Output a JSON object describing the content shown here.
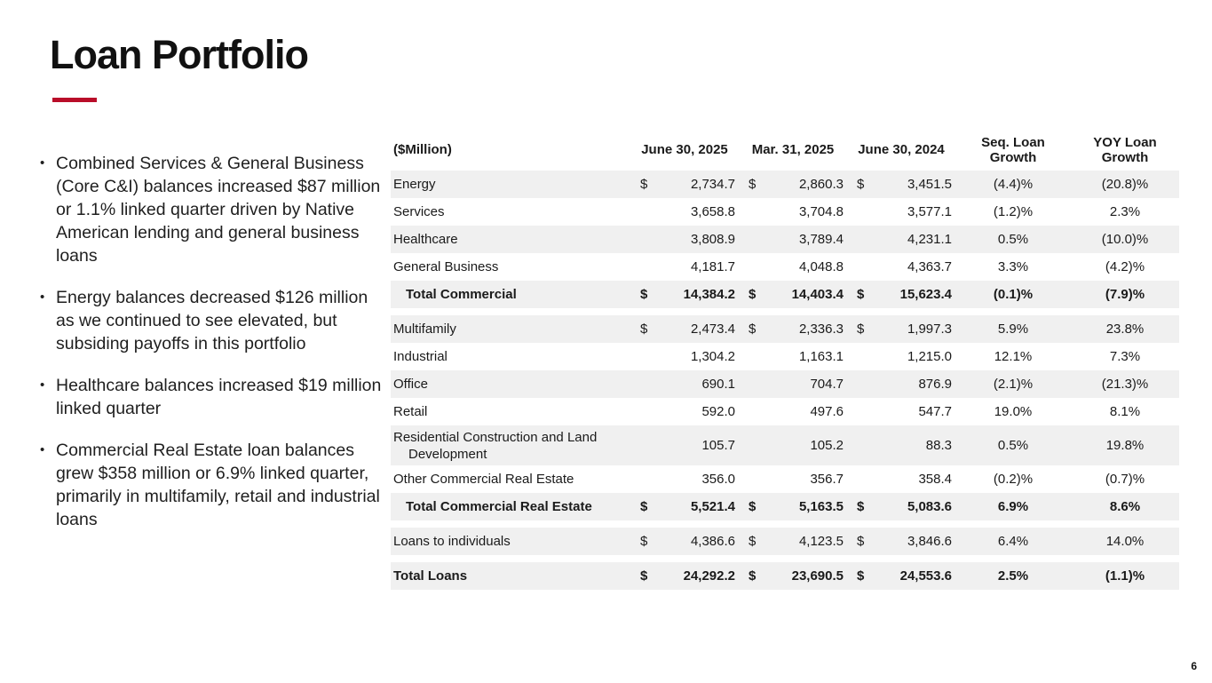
{
  "slide": {
    "title": "Loan Portfolio",
    "page_number": "6"
  },
  "colors": {
    "accent_red": "#B90D29",
    "row_stripe": "#F0F0F0",
    "text": "#1A1A1A"
  },
  "bullets": [
    "Combined Services & General Business (Core C&I) balances increased $87 million or 1.1% linked quarter driven by Native American lending and general business loans",
    "Energy balances decreased $126 million as we continued to see elevated, but subsiding payoffs in this portfolio",
    "Healthcare balances increased $19 million linked quarter",
    "Commercial Real Estate loan balances grew $358 million or 6.9% linked quarter, primarily in multifamily, retail and industrial loans"
  ],
  "table": {
    "unit_label": "($Million)",
    "columns": [
      "June 30, 2025",
      "Mar. 31, 2025",
      "June 30, 2024",
      "Seq. Loan Growth",
      "YOY Loan Growth"
    ],
    "rows": [
      {
        "label": "Energy",
        "dollar": true,
        "bold": false,
        "indent": false,
        "two_line": false,
        "shaded": true,
        "gap_after": false,
        "values": [
          "2,734.7",
          "2,860.3",
          "3,451.5",
          "(4.4)%",
          "(20.8)%"
        ]
      },
      {
        "label": "Services",
        "dollar": false,
        "bold": false,
        "indent": false,
        "two_line": false,
        "shaded": false,
        "gap_after": false,
        "values": [
          "3,658.8",
          "3,704.8",
          "3,577.1",
          "(1.2)%",
          "2.3%"
        ]
      },
      {
        "label": "Healthcare",
        "dollar": false,
        "bold": false,
        "indent": false,
        "two_line": false,
        "shaded": true,
        "gap_after": false,
        "values": [
          "3,808.9",
          "3,789.4",
          "4,231.1",
          "0.5%",
          "(10.0)%"
        ]
      },
      {
        "label": "General Business",
        "dollar": false,
        "bold": false,
        "indent": false,
        "two_line": false,
        "shaded": false,
        "gap_after": false,
        "values": [
          "4,181.7",
          "4,048.8",
          "4,363.7",
          "3.3%",
          "(4.2)%"
        ]
      },
      {
        "label": "Total Commercial",
        "dollar": true,
        "bold": true,
        "indent": true,
        "two_line": false,
        "shaded": true,
        "gap_after": true,
        "values": [
          "14,384.2",
          "14,403.4",
          "15,623.4",
          "(0.1)%",
          "(7.9)%"
        ]
      },
      {
        "label": "Multifamily",
        "dollar": true,
        "bold": false,
        "indent": false,
        "two_line": false,
        "shaded": true,
        "gap_after": false,
        "values": [
          "2,473.4",
          "2,336.3",
          "1,997.3",
          "5.9%",
          "23.8%"
        ]
      },
      {
        "label": "Industrial",
        "dollar": false,
        "bold": false,
        "indent": false,
        "two_line": false,
        "shaded": false,
        "gap_after": false,
        "values": [
          "1,304.2",
          "1,163.1",
          "1,215.0",
          "12.1%",
          "7.3%"
        ]
      },
      {
        "label": "Office",
        "dollar": false,
        "bold": false,
        "indent": false,
        "two_line": false,
        "shaded": true,
        "gap_after": false,
        "values": [
          "690.1",
          "704.7",
          "876.9",
          "(2.1)%",
          "(21.3)%"
        ]
      },
      {
        "label": "Retail",
        "dollar": false,
        "bold": false,
        "indent": false,
        "two_line": false,
        "shaded": false,
        "gap_after": false,
        "values": [
          "592.0",
          "497.6",
          "547.7",
          "19.0%",
          "8.1%"
        ]
      },
      {
        "label": "Residential Construction and Land Development",
        "dollar": false,
        "bold": false,
        "indent": false,
        "two_line": true,
        "shaded": true,
        "gap_after": false,
        "values": [
          "105.7",
          "105.2",
          "88.3",
          "0.5%",
          "19.8%"
        ]
      },
      {
        "label": "Other Commercial Real Estate",
        "dollar": false,
        "bold": false,
        "indent": false,
        "two_line": false,
        "shaded": false,
        "gap_after": false,
        "values": [
          "356.0",
          "356.7",
          "358.4",
          "(0.2)%",
          "(0.7)%"
        ]
      },
      {
        "label": "Total Commercial Real Estate",
        "dollar": true,
        "bold": true,
        "indent": true,
        "two_line": false,
        "shaded": true,
        "gap_after": true,
        "values": [
          "5,521.4",
          "5,163.5",
          "5,083.6",
          "6.9%",
          "8.6%"
        ]
      },
      {
        "label": "Loans to individuals",
        "dollar": true,
        "bold": false,
        "indent": false,
        "two_line": false,
        "shaded": true,
        "gap_after": true,
        "values": [
          "4,386.6",
          "4,123.5",
          "3,846.6",
          "6.4%",
          "14.0%"
        ]
      },
      {
        "label": "Total Loans",
        "dollar": true,
        "bold": true,
        "indent": false,
        "two_line": false,
        "shaded": true,
        "gap_after": false,
        "values": [
          "24,292.2",
          "23,690.5",
          "24,553.6",
          "2.5%",
          "(1.1)%"
        ]
      }
    ]
  }
}
